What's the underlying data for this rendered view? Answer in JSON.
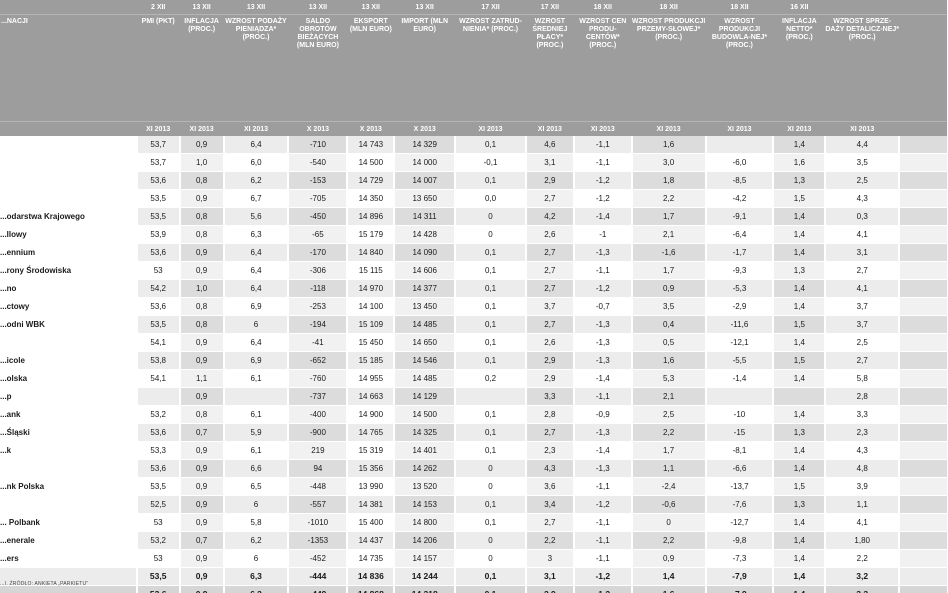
{
  "columns": [
    {
      "date": "",
      "title": "...NACJI",
      "period": ""
    },
    {
      "date": "2 XII",
      "title": "PMI (PKT)",
      "period": "XI 2013"
    },
    {
      "date": "13 XII",
      "title": "INFLACJA (PROC.)",
      "period": "XI 2013"
    },
    {
      "date": "13 XII",
      "title": "WZROST PODAŻY PIENIĄDZA* (PROC.)",
      "period": "XI 2013"
    },
    {
      "date": "13 XII",
      "title": "SALDO OBROTÓW BIEŻĄCYCH (MLN EURO)",
      "period": "X 2013"
    },
    {
      "date": "13 XII",
      "title": "EKSPORT (MLN EURO)",
      "period": "X 2013"
    },
    {
      "date": "13 XII",
      "title": "IMPORT (MLN EURO)",
      "period": "X 2013"
    },
    {
      "date": "17 XII",
      "title": "WZROST ZATRUD-NIENIA* (PROC.)",
      "period": "XI 2013"
    },
    {
      "date": "17 XII",
      "title": "WZROST ŚREDNIEJ PŁACY* (PROC.)",
      "period": "XI 2013"
    },
    {
      "date": "18 XII",
      "title": "WZROST CEN PRODU-CENTÓW* (PROC.)",
      "period": "XI 2013"
    },
    {
      "date": "18 XII",
      "title": "WZROST PRODUKCJI PRZEMY-SŁOWEJ* (PROC.)",
      "period": "XI 2013"
    },
    {
      "date": "18 XII",
      "title": "WZROST PRODUKCJI BUDOWLA-NEJ* (PROC.)",
      "period": "XI 2013"
    },
    {
      "date": "16 XII",
      "title": "INFLACJA NETTO* (PROC.)",
      "period": "XI 2013"
    },
    {
      "date": "",
      "title": "WZROST SPRZE-DAŻY DETALICZ-NEJ* (PROC.)",
      "period": "XI 2013"
    },
    {
      "date": "",
      "title": "",
      "period": ""
    }
  ],
  "rows": [
    {
      "name": "",
      "values": [
        "53,7",
        "0,9",
        "6,4",
        "-710",
        "14 743",
        "14 329",
        "0,1",
        "4,6",
        "-1,1",
        "1,6",
        "",
        "1,4",
        "4,4",
        ""
      ]
    },
    {
      "name": "",
      "values": [
        "53,7",
        "1,0",
        "6,0",
        "-540",
        "14 500",
        "14 000",
        "-0,1",
        "3,1",
        "-1,1",
        "3,0",
        "-6,0",
        "1,6",
        "3,5",
        ""
      ]
    },
    {
      "name": "",
      "values": [
        "53,6",
        "0,8",
        "6,2",
        "-153",
        "14 729",
        "14 007",
        "0,1",
        "2,9",
        "-1,2",
        "1,8",
        "-8,5",
        "1,3",
        "2,5",
        ""
      ]
    },
    {
      "name": "",
      "values": [
        "53,5",
        "0,9",
        "6,7",
        "-705",
        "14 350",
        "13 650",
        "0,0",
        "2,7",
        "-1,2",
        "2,2",
        "-4,2",
        "1,5",
        "4,3",
        ""
      ]
    },
    {
      "name": "...odarstwa Krajowego",
      "values": [
        "53,5",
        "0,8",
        "5,6",
        "-450",
        "14 896",
        "14 311",
        "0",
        "4,2",
        "-1,4",
        "1,7",
        "-9,1",
        "1,4",
        "0,3",
        ""
      ]
    },
    {
      "name": "...llowy",
      "values": [
        "53,9",
        "0,8",
        "6,3",
        "-65",
        "15 179",
        "14 428",
        "0",
        "2,6",
        "-1",
        "2,1",
        "-6,4",
        "1,4",
        "4,1",
        ""
      ]
    },
    {
      "name": "...ennium",
      "values": [
        "53,6",
        "0,9",
        "6,4",
        "-170",
        "14 840",
        "14 090",
        "0,1",
        "2,7",
        "-1,3",
        "-1,6",
        "-1,7",
        "1,4",
        "3,1",
        ""
      ]
    },
    {
      "name": "...rony Środowiska",
      "values": [
        "53",
        "0,9",
        "6,4",
        "-306",
        "15 115",
        "14 606",
        "0,1",
        "2,7",
        "-1,1",
        "1,7",
        "-9,3",
        "1,3",
        "2,7",
        ""
      ]
    },
    {
      "name": "...no",
      "values": [
        "54,2",
        "1,0",
        "6,4",
        "-118",
        "14 970",
        "14 377",
        "0,1",
        "2,7",
        "-1,2",
        "0,9",
        "-5,3",
        "1,4",
        "4,1",
        ""
      ]
    },
    {
      "name": "...ctowy",
      "values": [
        "53,6",
        "0,8",
        "6,9",
        "-253",
        "14 100",
        "13 450",
        "0,1",
        "3,7",
        "-0,7",
        "3,5",
        "-2,9",
        "1,4",
        "3,7",
        ""
      ]
    },
    {
      "name": "...odni WBK",
      "values": [
        "53,5",
        "0,8",
        "6",
        "-194",
        "15 109",
        "14 485",
        "0,1",
        "2,7",
        "-1,3",
        "0,4",
        "-11,6",
        "1,5",
        "3,7",
        ""
      ]
    },
    {
      "name": "",
      "values": [
        "54,1",
        "0,9",
        "6,4",
        "-41",
        "15 450",
        "14 650",
        "0,1",
        "2,6",
        "-1,3",
        "0,5",
        "-12,1",
        "1,4",
        "2,5",
        ""
      ]
    },
    {
      "name": "...icole",
      "values": [
        "53,8",
        "0,9",
        "6,9",
        "-652",
        "15 185",
        "14 546",
        "0,1",
        "2,9",
        "-1,3",
        "1,6",
        "-5,5",
        "1,5",
        "2,7",
        ""
      ]
    },
    {
      "name": "...olska",
      "values": [
        "54,1",
        "1,1",
        "6,1",
        "-760",
        "14 955",
        "14 485",
        "0,2",
        "2,9",
        "-1,4",
        "5,3",
        "-1,4",
        "1,4",
        "5,8",
        ""
      ]
    },
    {
      "name": "...p",
      "values": [
        "",
        "0,9",
        "",
        "-737",
        "14 663",
        "14 129",
        "",
        "3,3",
        "-1,1",
        "2,1",
        "",
        "",
        "2,8",
        ""
      ]
    },
    {
      "name": "...ank",
      "values": [
        "53,2",
        "0,8",
        "6,1",
        "-400",
        "14 900",
        "14 500",
        "0,1",
        "2,8",
        "-0,9",
        "2,5",
        "-10",
        "1,4",
        "3,3",
        ""
      ]
    },
    {
      "name": "...Śląski",
      "values": [
        "53,6",
        "0,7",
        "5,9",
        "-900",
        "14 765",
        "14 325",
        "0,1",
        "2,7",
        "-1,3",
        "2,2",
        "-15",
        "1,3",
        "2,3",
        ""
      ]
    },
    {
      "name": "...k",
      "values": [
        "53,3",
        "0,9",
        "6,1",
        "219",
        "15 319",
        "14 401",
        "0,1",
        "2,3",
        "-1,4",
        "1,7",
        "-8,1",
        "1,4",
        "4,3",
        ""
      ]
    },
    {
      "name": "",
      "values": [
        "53,6",
        "0,9",
        "6,6",
        "94",
        "15 356",
        "14 262",
        "0",
        "4,3",
        "-1,3",
        "1,1",
        "-6,6",
        "1,4",
        "4,8",
        ""
      ]
    },
    {
      "name": "...nk Polska",
      "values": [
        "53,5",
        "0,9",
        "6,5",
        "-448",
        "13 990",
        "13 520",
        "0",
        "3,6",
        "-1,1",
        "-2,4",
        "-13,7",
        "1,5",
        "3,9",
        ""
      ]
    },
    {
      "name": "",
      "values": [
        "52,5",
        "0,9",
        "6",
        "-557",
        "14 381",
        "14 153",
        "0,1",
        "3,4",
        "-1,2",
        "-0,6",
        "-7,6",
        "1,3",
        "1,1",
        ""
      ]
    },
    {
      "name": "... Polbank",
      "values": [
        "53",
        "0,9",
        "5,8",
        "-1010",
        "15 400",
        "14 800",
        "0,1",
        "2,7",
        "-1,1",
        "0",
        "-12,7",
        "1,4",
        "4,1",
        ""
      ]
    },
    {
      "name": "...enerale",
      "values": [
        "53,2",
        "0,7",
        "6,2",
        "-1353",
        "14 437",
        "14 206",
        "0",
        "2,2",
        "-1,1",
        "2,2",
        "-9,8",
        "1,4",
        "1,80",
        ""
      ]
    },
    {
      "name": "...ers",
      "values": [
        "53",
        "0,9",
        "6",
        "-452",
        "14 735",
        "14 157",
        "0",
        "3",
        "-1,1",
        "0,9",
        "-7,3",
        "1,4",
        "2,2",
        ""
      ]
    }
  ],
  "summary": [
    {
      "name": "",
      "values": [
        "53,5",
        "0,9",
        "6,3",
        "-444",
        "14 836",
        "14 244",
        "0,1",
        "3,1",
        "-1,2",
        "1,4",
        "-7,9",
        "1,4",
        "3,2",
        ""
      ]
    },
    {
      "name": "",
      "values": [
        "53,6",
        "0,9",
        "6,2",
        "-449",
        "14 868",
        "14 318",
        "0,1",
        "2,9",
        "-1,2",
        "1,6",
        "-7,9",
        "1,4",
        "3,3",
        ""
      ]
    }
  ],
  "footer": "...I. ŹRÓDŁO: ANKIETA „PARKIETU”"
}
